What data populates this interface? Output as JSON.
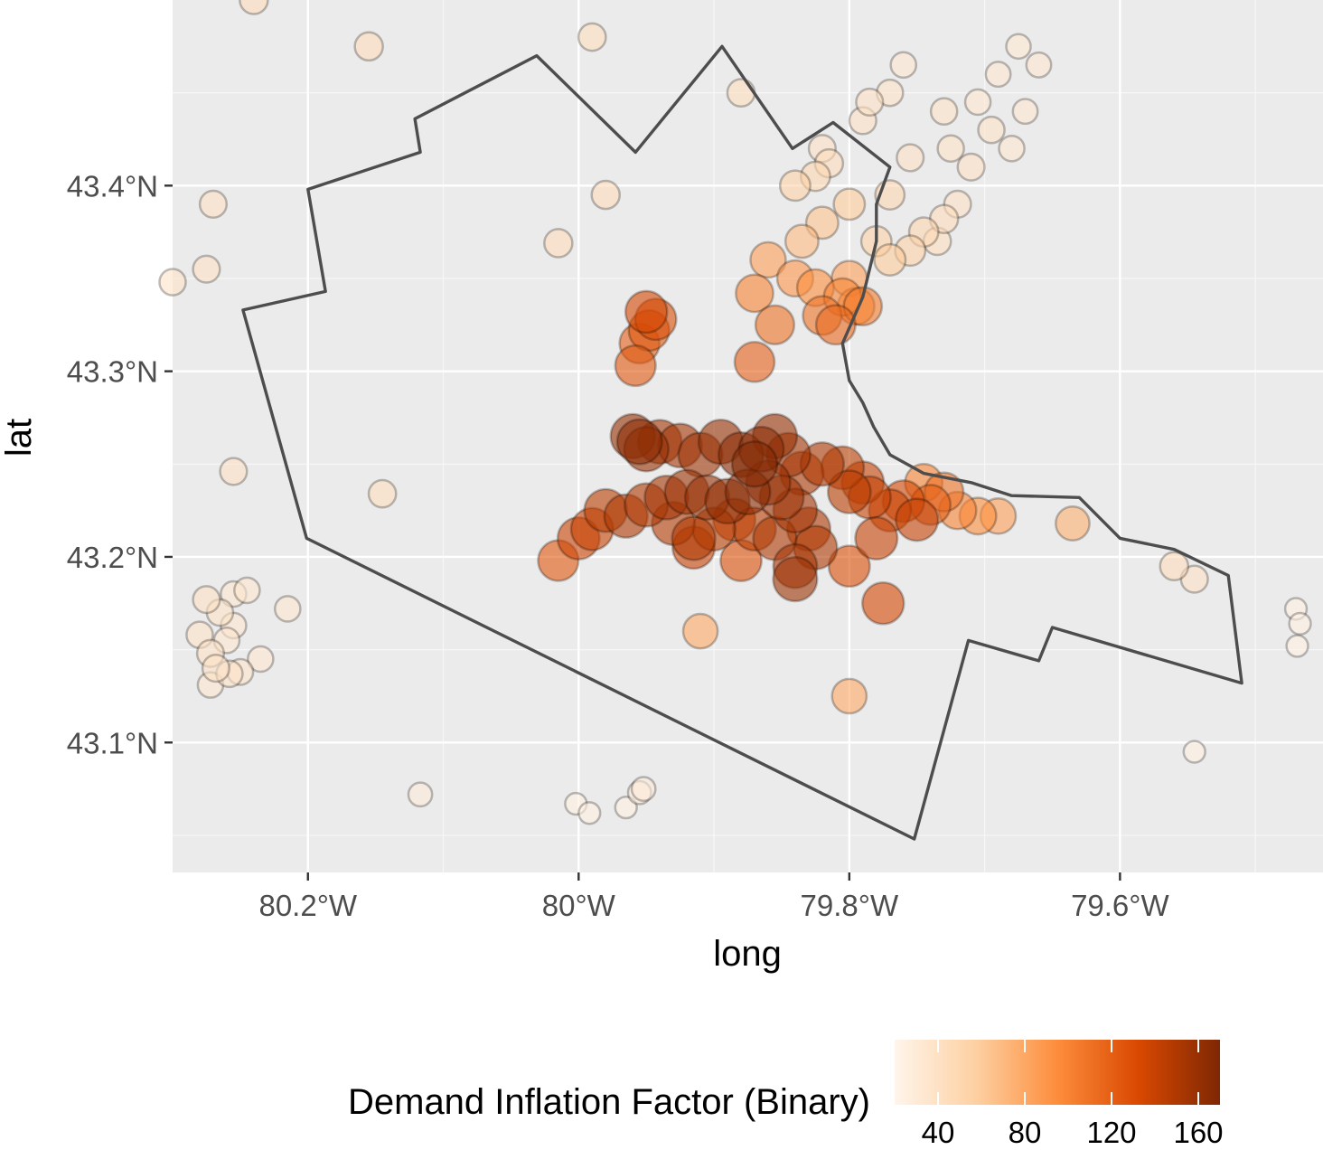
{
  "chart_data": {
    "type": "scatter",
    "xlabel": "long",
    "ylabel": "lat",
    "xlim": [
      -80.3,
      -79.45
    ],
    "ylim": [
      43.03,
      43.5
    ],
    "x_ticks": [
      -80.2,
      -80.0,
      -79.8,
      -79.6
    ],
    "x_tick_labels": [
      "80.2°W",
      "80°W",
      "79.8°W",
      "79.6°W"
    ],
    "y_ticks": [
      43.1,
      43.2,
      43.3,
      43.4
    ],
    "y_tick_labels": [
      "43.1°N",
      "43.2°N",
      "43.3°N",
      "43.4°N"
    ],
    "grid": true,
    "legend": {
      "title": "Demand Inflation Factor (Binary)",
      "position": "bottom",
      "range": [
        20,
        170
      ],
      "ticks": [
        40,
        80,
        120,
        160
      ],
      "tick_labels": [
        "40",
        "80",
        "120",
        "160"
      ],
      "colors": [
        "#fff5eb",
        "#fdd0a2",
        "#fd8d3c",
        "#d94801",
        "#7f2704"
      ]
    },
    "boundary": [
      [
        -80.2,
        43.398
      ],
      [
        -80.117,
        43.418
      ],
      [
        -80.121,
        43.436
      ],
      [
        -80.031,
        43.47
      ],
      [
        -79.958,
        43.418
      ],
      [
        -79.894,
        43.475
      ],
      [
        -79.842,
        43.42
      ],
      [
        -79.812,
        43.434
      ],
      [
        -79.77,
        43.41
      ],
      [
        -79.78,
        43.39
      ],
      [
        -79.78,
        43.37
      ],
      [
        -79.79,
        43.34
      ],
      [
        -79.805,
        43.315
      ],
      [
        -79.8,
        43.295
      ],
      [
        -79.79,
        43.283
      ],
      [
        -79.782,
        43.27
      ],
      [
        -79.77,
        43.255
      ],
      [
        -79.745,
        43.245
      ],
      [
        -79.71,
        43.24
      ],
      [
        -79.68,
        43.233
      ],
      [
        -79.63,
        43.232
      ],
      [
        -79.6,
        43.21
      ],
      [
        -79.56,
        43.204
      ],
      [
        -79.52,
        43.19
      ],
      [
        -79.51,
        43.132
      ],
      [
        -79.65,
        43.162
      ],
      [
        -79.66,
        43.144
      ],
      [
        -79.712,
        43.155
      ],
      [
        -79.752,
        43.048
      ],
      [
        -80.201,
        43.21
      ],
      [
        -80.248,
        43.333
      ],
      [
        -80.187,
        43.343
      ]
    ],
    "points": [
      [
        -80.24,
        43.5,
        45
      ],
      [
        -80.155,
        43.475,
        45
      ],
      [
        -79.99,
        43.48,
        42
      ],
      [
        -79.82,
        43.42,
        40
      ],
      [
        -79.88,
        43.45,
        42
      ],
      [
        -79.98,
        43.395,
        45
      ],
      [
        -80.27,
        43.39,
        40
      ],
      [
        -80.275,
        43.355,
        40
      ],
      [
        -80.3,
        43.348,
        38
      ],
      [
        -80.015,
        43.369,
        45
      ],
      [
        -80.255,
        43.246,
        40
      ],
      [
        -80.145,
        43.234,
        42
      ],
      [
        -79.95,
        43.332,
        135
      ],
      [
        -79.943,
        43.328,
        130
      ],
      [
        -79.948,
        43.322,
        125
      ],
      [
        -79.955,
        43.315,
        120
      ],
      [
        -79.958,
        43.303,
        125
      ],
      [
        -79.82,
        43.33,
        110
      ],
      [
        -79.81,
        43.325,
        115
      ],
      [
        -79.79,
        43.335,
        105
      ],
      [
        -79.805,
        43.34,
        100
      ],
      [
        -79.825,
        43.345,
        95
      ],
      [
        -79.84,
        43.35,
        90
      ],
      [
        -79.86,
        43.36,
        85
      ],
      [
        -79.87,
        43.342,
        100
      ],
      [
        -79.855,
        43.325,
        110
      ],
      [
        -79.87,
        43.305,
        120
      ],
      [
        -79.835,
        43.37,
        70
      ],
      [
        -79.82,
        43.38,
        65
      ],
      [
        -79.8,
        43.39,
        60
      ],
      [
        -79.78,
        43.37,
        55
      ],
      [
        -79.77,
        43.36,
        60
      ],
      [
        -79.755,
        43.365,
        55
      ],
      [
        -79.745,
        43.375,
        50
      ],
      [
        -79.73,
        43.382,
        45
      ],
      [
        -79.72,
        43.39,
        40
      ],
      [
        -79.77,
        43.395,
        50
      ],
      [
        -79.825,
        43.405,
        50
      ],
      [
        -79.84,
        43.4,
        55
      ],
      [
        -79.815,
        43.412,
        45
      ],
      [
        -79.79,
        43.435,
        40
      ],
      [
        -79.785,
        43.445,
        40
      ],
      [
        -79.77,
        43.45,
        38
      ],
      [
        -79.76,
        43.465,
        35
      ],
      [
        -79.73,
        43.44,
        38
      ],
      [
        -79.705,
        43.445,
        35
      ],
      [
        -79.695,
        43.43,
        38
      ],
      [
        -79.71,
        43.41,
        40
      ],
      [
        -79.725,
        43.42,
        38
      ],
      [
        -79.755,
        43.415,
        40
      ],
      [
        -79.68,
        43.42,
        35
      ],
      [
        -79.67,
        43.44,
        33
      ],
      [
        -79.66,
        43.465,
        33
      ],
      [
        -79.675,
        43.475,
        32
      ],
      [
        -79.69,
        43.46,
        33
      ],
      [
        -79.735,
        43.37,
        42
      ],
      [
        -79.8,
        43.35,
        85
      ],
      [
        -79.795,
        43.335,
        95
      ],
      [
        -79.96,
        43.265,
        160
      ],
      [
        -79.955,
        43.262,
        165
      ],
      [
        -79.95,
        43.258,
        160
      ],
      [
        -79.94,
        43.262,
        155
      ],
      [
        -79.925,
        43.26,
        155
      ],
      [
        -79.91,
        43.255,
        158
      ],
      [
        -79.895,
        43.262,
        160
      ],
      [
        -79.88,
        43.255,
        165
      ],
      [
        -79.87,
        43.25,
        168
      ],
      [
        -79.865,
        43.258,
        165
      ],
      [
        -79.855,
        43.265,
        160
      ],
      [
        -79.845,
        43.255,
        155
      ],
      [
        -79.835,
        43.245,
        150
      ],
      [
        -79.82,
        43.25,
        150
      ],
      [
        -79.805,
        43.248,
        145
      ],
      [
        -79.79,
        43.24,
        140
      ],
      [
        -79.8,
        43.235,
        145
      ],
      [
        -79.785,
        43.232,
        140
      ],
      [
        -79.77,
        43.225,
        138
      ],
      [
        -79.76,
        43.23,
        135
      ],
      [
        -79.75,
        43.22,
        140
      ],
      [
        -79.74,
        43.228,
        120
      ],
      [
        -79.73,
        43.235,
        110
      ],
      [
        -79.72,
        43.225,
        100
      ],
      [
        -79.705,
        43.222,
        95
      ],
      [
        -79.69,
        43.222,
        85
      ],
      [
        -79.745,
        43.24,
        100
      ],
      [
        -79.635,
        43.218,
        75
      ],
      [
        -79.56,
        43.195,
        45
      ],
      [
        -79.545,
        43.188,
        40
      ],
      [
        -79.47,
        43.172,
        25
      ],
      [
        -79.467,
        43.164,
        25
      ],
      [
        -79.469,
        43.152,
        25
      ],
      [
        -79.545,
        43.095,
        25
      ],
      [
        -79.98,
        43.225,
        145
      ],
      [
        -79.99,
        43.215,
        140
      ],
      [
        -80.0,
        43.21,
        138
      ],
      [
        -79.965,
        43.222,
        150
      ],
      [
        -79.95,
        43.228,
        150
      ],
      [
        -79.935,
        43.232,
        155
      ],
      [
        -79.92,
        43.235,
        158
      ],
      [
        -79.905,
        43.232,
        160
      ],
      [
        -79.89,
        43.23,
        162
      ],
      [
        -79.875,
        43.235,
        165
      ],
      [
        -79.86,
        43.24,
        160
      ],
      [
        -79.85,
        43.232,
        158
      ],
      [
        -79.84,
        43.225,
        155
      ],
      [
        -79.83,
        43.215,
        150
      ],
      [
        -79.825,
        43.205,
        150
      ],
      [
        -79.84,
        43.195,
        155
      ],
      [
        -79.855,
        43.21,
        150
      ],
      [
        -79.87,
        43.215,
        145
      ],
      [
        -79.885,
        43.22,
        140
      ],
      [
        -79.9,
        43.215,
        145
      ],
      [
        -79.915,
        43.21,
        150
      ],
      [
        -79.93,
        43.218,
        148
      ],
      [
        -79.915,
        43.205,
        140
      ],
      [
        -79.88,
        43.198,
        130
      ],
      [
        -80.015,
        43.198,
        125
      ],
      [
        -79.8,
        43.195,
        130
      ],
      [
        -79.78,
        43.21,
        140
      ],
      [
        -79.775,
        43.175,
        135
      ],
      [
        -79.91,
        43.16,
        80
      ],
      [
        -79.8,
        43.125,
        80
      ],
      [
        -79.84,
        43.188,
        158
      ],
      [
        -80.275,
        43.177,
        40
      ],
      [
        -80.265,
        43.17,
        38
      ],
      [
        -80.255,
        43.18,
        35
      ],
      [
        -80.245,
        43.182,
        35
      ],
      [
        -80.255,
        43.163,
        35
      ],
      [
        -80.26,
        43.155,
        35
      ],
      [
        -80.28,
        43.158,
        38
      ],
      [
        -80.272,
        43.148,
        40
      ],
      [
        -80.268,
        43.14,
        40
      ],
      [
        -80.258,
        43.137,
        38
      ],
      [
        -80.25,
        43.138,
        36
      ],
      [
        -80.272,
        43.131,
        35
      ],
      [
        -80.235,
        43.145,
        35
      ],
      [
        -80.215,
        43.172,
        35
      ],
      [
        -80.117,
        43.072,
        30
      ],
      [
        -80.002,
        43.067,
        25
      ],
      [
        -79.992,
        43.062,
        25
      ],
      [
        -79.965,
        43.065,
        25
      ],
      [
        -79.955,
        43.073,
        28
      ],
      [
        -79.952,
        43.075,
        30
      ]
    ]
  }
}
